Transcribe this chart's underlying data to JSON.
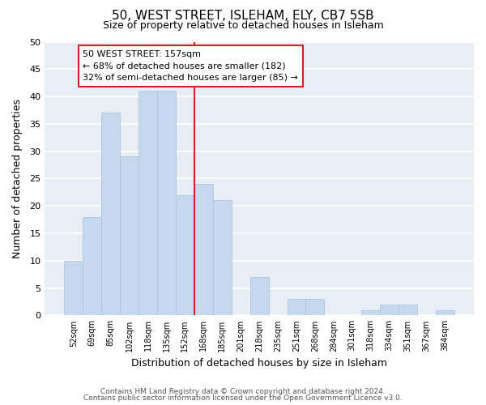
{
  "title1": "50, WEST STREET, ISLEHAM, ELY, CB7 5SB",
  "title2": "Size of property relative to detached houses in Isleham",
  "xlabel": "Distribution of detached houses by size in Isleham",
  "ylabel": "Number of detached properties",
  "bar_labels": [
    "52sqm",
    "69sqm",
    "85sqm",
    "102sqm",
    "118sqm",
    "135sqm",
    "152sqm",
    "168sqm",
    "185sqm",
    "201sqm",
    "218sqm",
    "235sqm",
    "251sqm",
    "268sqm",
    "284sqm",
    "301sqm",
    "318sqm",
    "334sqm",
    "351sqm",
    "367sqm",
    "384sqm"
  ],
  "bar_values": [
    10,
    18,
    37,
    29,
    41,
    41,
    22,
    24,
    21,
    0,
    7,
    0,
    3,
    3,
    0,
    0,
    1,
    2,
    2,
    0,
    1
  ],
  "bar_color": "#c5d8ed",
  "bar_edge_color": "#aec6dc",
  "ylim": [
    0,
    50
  ],
  "yticks": [
    0,
    5,
    10,
    15,
    20,
    25,
    30,
    35,
    40,
    45,
    50
  ],
  "property_line_x": 6.5,
  "annotation_line1": "50 WEST STREET: 157sqm",
  "annotation_line2": "← 68% of detached houses are smaller (182)",
  "annotation_line3": "32% of semi-detached houses are larger (85) →",
  "annotation_box_facecolor": "#ffffff",
  "annotation_box_edgecolor": "#cc2222",
  "property_line_color": "#cc2222",
  "footer1": "Contains HM Land Registry data © Crown copyright and database right 2024.",
  "footer2": "Contains public sector information licensed under the Open Government Licence v3.0.",
  "background_color": "#ffffff",
  "plot_bg_color": "#e8eef5",
  "grid_color": "#ffffff",
  "title1_fontsize": 11,
  "title2_fontsize": 9
}
